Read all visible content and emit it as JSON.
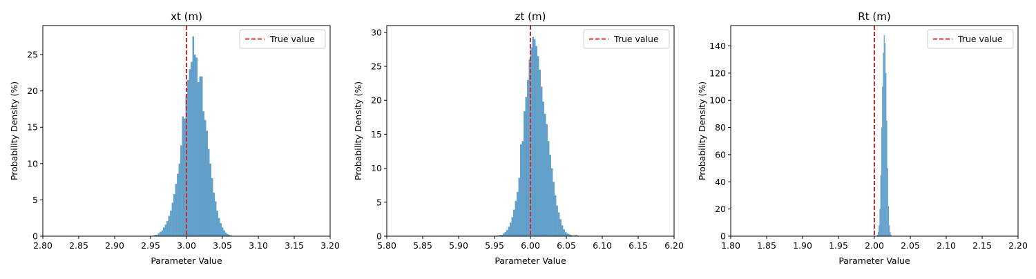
{
  "colors": {
    "bar": "#1f77b4",
    "bar_opacity": 0.7,
    "true_line": "#d62728",
    "axes": "#000000",
    "background": "#ffffff"
  },
  "legend_label": "True value",
  "chart_data": [
    {
      "type": "bar",
      "title": "xt (m)",
      "xlabel": "Parameter Value",
      "ylabel": "Probability Density (%)",
      "xlim": [
        2.8,
        3.2
      ],
      "ylim": [
        0,
        29
      ],
      "xticks": [
        "2.80",
        "2.85",
        "2.90",
        "2.95",
        "3.00",
        "3.05",
        "3.10",
        "3.15",
        "3.20"
      ],
      "yticks": [
        "0",
        "5",
        "10",
        "15",
        "20",
        "25"
      ],
      "true_value": 3.0,
      "legend": {
        "placement": "top-right",
        "entries": [
          "True value"
        ]
      },
      "bin_width": 0.0024,
      "bin_start": 2.953,
      "values": [
        0.1,
        0.2,
        0.2,
        0.4,
        0.6,
        0.8,
        1.2,
        1.6,
        2.1,
        2.8,
        3.5,
        4.6,
        5.8,
        7.2,
        8.6,
        10.0,
        12.5,
        16.5,
        16.2,
        19.5,
        21.5,
        23.0,
        24.0,
        27.5,
        25.0,
        24.6,
        21.2,
        22.0,
        22.0,
        17.2,
        16.0,
        14.5,
        12.0,
        10.0,
        8.0,
        6.0,
        4.8,
        3.5,
        2.5,
        1.8,
        1.2,
        0.8,
        0.5,
        0.3,
        0.2,
        0.1
      ]
    },
    {
      "type": "bar",
      "title": "zt (m)",
      "xlabel": "Parameter Value",
      "ylabel": "Probability Density (%)",
      "xlim": [
        5.8,
        6.2
      ],
      "ylim": [
        0,
        31
      ],
      "xticks": [
        "5.80",
        "5.85",
        "5.90",
        "5.95",
        "6.00",
        "6.05",
        "6.10",
        "6.15",
        "6.20"
      ],
      "yticks": [
        "0",
        "5",
        "10",
        "15",
        "20",
        "25",
        "30"
      ],
      "true_value": 6.0,
      "legend": {
        "placement": "top-right",
        "entries": [
          "True value"
        ]
      },
      "bin_width": 0.0024,
      "bin_start": 5.952,
      "values": [
        0.1,
        0.1,
        0.2,
        0.2,
        0.4,
        0.6,
        0.9,
        1.4,
        2.0,
        2.8,
        3.9,
        5.2,
        6.5,
        8.6,
        13.5,
        14.0,
        18.4,
        20.5,
        23.0,
        26.0,
        27.8,
        29.3,
        29.0,
        28.0,
        26.5,
        24.5,
        22.0,
        19.8,
        18.0,
        16.5,
        14.0,
        12.0,
        10.0,
        8.0,
        6.0,
        4.5,
        3.5,
        2.5,
        1.6,
        1.0,
        0.6,
        0.4,
        0.3,
        0.2,
        0.1,
        0.1,
        0.2,
        0.1
      ]
    },
    {
      "type": "bar",
      "title": "Rt (m)",
      "xlabel": "Parameter Value",
      "ylabel": "Probability Density (%)",
      "xlim": [
        1.8,
        2.2
      ],
      "ylim": [
        0,
        155
      ],
      "xticks": [
        "1.80",
        "1.85",
        "1.90",
        "1.95",
        "2.00",
        "2.05",
        "2.10",
        "2.15",
        "2.20"
      ],
      "yticks": [
        "0",
        "20",
        "40",
        "60",
        "80",
        "100",
        "120",
        "140"
      ],
      "true_value": 2.0,
      "legend": {
        "placement": "top-right",
        "entries": [
          "True value"
        ]
      },
      "bin_width": 0.0012,
      "bin_start": 2.0035,
      "values": [
        1,
        3,
        8,
        20,
        45,
        80,
        110,
        135,
        148,
        142,
        120,
        85,
        50,
        22,
        8,
        3,
        1
      ]
    }
  ]
}
